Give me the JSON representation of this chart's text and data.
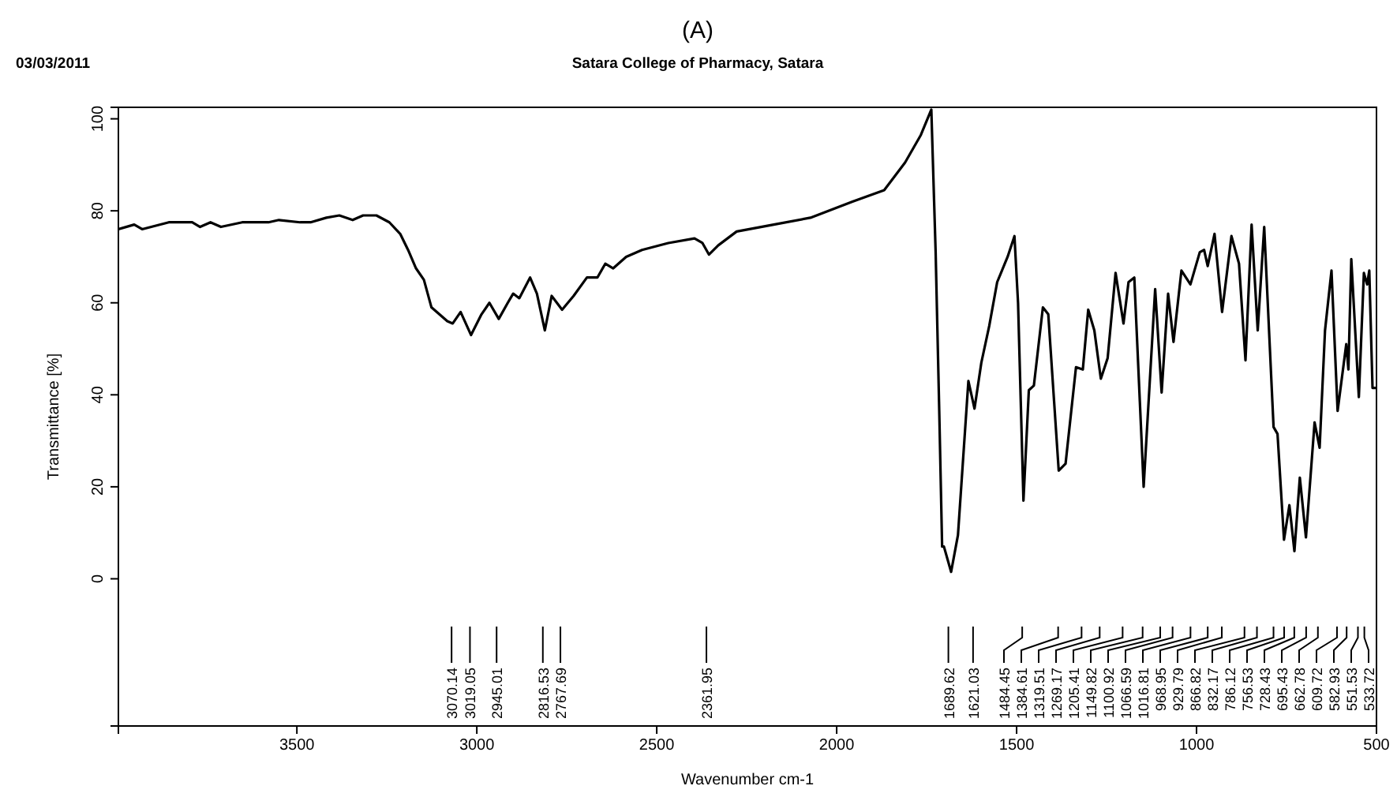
{
  "chart_data": {
    "type": "line",
    "title": "(A)",
    "subtitle": "Satara College of Pharmacy, Satara",
    "xlabel": "Wavenumber cm-1",
    "ylabel": "Transmittance [%]",
    "xlim": [
      3996,
      500
    ],
    "ylim": [
      -32,
      102.5
    ],
    "xticks": [
      3500,
      3000,
      2500,
      2000,
      1500,
      1000,
      500
    ],
    "yticks": [
      0,
      20,
      40,
      60,
      80,
      100
    ],
    "series": [
      {
        "color": "#000000",
        "x": [
          3996,
          3952,
          3930,
          3856,
          3791,
          3769,
          3740,
          3711,
          3652,
          3579,
          3550,
          3491,
          3462,
          3418,
          3382,
          3345,
          3316,
          3279,
          3243,
          3213,
          3191,
          3169,
          3147,
          3126,
          3104,
          3082,
          3067,
          3045,
          3016,
          2987,
          2965,
          2939,
          2914,
          2899,
          2882,
          2852,
          2833,
          2811,
          2792,
          2763,
          2731,
          2694,
          2665,
          2643,
          2621,
          2585,
          2541,
          2468,
          2395,
          2373,
          2355,
          2329,
          2278,
          2175,
          2073,
          1956,
          1868,
          1810,
          1766,
          1737,
          1725,
          1715,
          1707,
          1702,
          1682,
          1663,
          1634,
          1617,
          1598,
          1576,
          1554,
          1525,
          1506,
          1496,
          1481,
          1466,
          1452,
          1427,
          1412,
          1383,
          1364,
          1335,
          1316,
          1301,
          1284,
          1266,
          1247,
          1225,
          1203,
          1189,
          1173,
          1147,
          1115,
          1097,
          1079,
          1064,
          1042,
          1017,
          991,
          979,
          969,
          950,
          929,
          903,
          882,
          864,
          847,
          830,
          812,
          786,
          775,
          757,
          742,
          728,
          713,
          696,
          672,
          658,
          643,
          625,
          608,
          584,
          578,
          570,
          549,
          535,
          526,
          520,
          511,
          500
        ],
        "values": [
          76,
          77,
          76,
          77.5,
          77.5,
          76.5,
          77.5,
          76.5,
          77.5,
          77.5,
          78,
          77.5,
          77.5,
          78.5,
          79,
          78,
          79,
          79,
          77.5,
          75,
          71.5,
          67.5,
          65,
          59,
          57.5,
          56,
          55.5,
          58,
          53,
          57.5,
          60,
          56.5,
          60,
          62,
          61,
          65.5,
          62,
          54,
          61.5,
          58.5,
          61.5,
          65.5,
          65.5,
          68.5,
          67.5,
          70,
          71.5,
          73,
          74,
          73,
          70.5,
          72.5,
          75.5,
          77,
          78.5,
          82,
          84.5,
          90.5,
          96.5,
          102,
          71,
          36.5,
          7,
          7,
          1.5,
          9.5,
          43,
          37,
          47,
          55,
          64.5,
          70,
          74.5,
          60,
          17,
          41,
          42,
          59,
          57.5,
          23.5,
          25,
          46,
          45.5,
          58.5,
          54,
          43.5,
          48,
          66.5,
          55.5,
          64.5,
          65.5,
          20,
          63,
          40.5,
          62,
          51.5,
          67,
          64,
          71,
          71.5,
          68,
          75,
          58,
          74.5,
          68.5,
          47.5,
          77,
          54,
          76.5,
          33,
          31.5,
          8.5,
          16,
          6,
          22,
          9,
          34,
          28.5,
          54,
          67,
          36.5,
          51,
          45.5,
          69.5,
          39.5,
          66.5,
          64,
          67,
          41.5,
          41.5
        ]
      }
    ],
    "annotations": [
      "03/03/2011",
      {
        "text": "3070.14",
        "x": 3070.14
      },
      {
        "text": "3019.05",
        "x": 3019.05
      },
      {
        "text": "2945.01",
        "x": 2945.01
      },
      {
        "text": "2816.53",
        "x": 2816.53
      },
      {
        "text": "2767.69",
        "x": 2767.69
      },
      {
        "text": "2361.95",
        "x": 2361.95
      },
      {
        "text": "1689.62",
        "x": 1689.62
      },
      {
        "text": "1621.03",
        "x": 1621.03
      },
      {
        "text": "1484.45",
        "x": 1484.45
      },
      {
        "text": "1384.61",
        "x": 1384.61
      },
      {
        "text": "1319.51",
        "x": 1319.51
      },
      {
        "text": "1269.17",
        "x": 1269.17
      },
      {
        "text": "1205.41",
        "x": 1205.41
      },
      {
        "text": "1149.82",
        "x": 1149.82
      },
      {
        "text": "1100.92",
        "x": 1100.92
      },
      {
        "text": "1066.59",
        "x": 1066.59
      },
      {
        "text": "1016.81",
        "x": 1016.81
      },
      {
        "text": "968.95",
        "x": 968.95
      },
      {
        "text": "929.79",
        "x": 929.79
      },
      {
        "text": "866.82",
        "x": 866.82
      },
      {
        "text": "832.17",
        "x": 832.17
      },
      {
        "text": "786.12",
        "x": 786.12
      },
      {
        "text": "756.53",
        "x": 756.53
      },
      {
        "text": "728.43",
        "x": 728.43
      },
      {
        "text": "695.43",
        "x": 695.43
      },
      {
        "text": "662.78",
        "x": 662.78
      },
      {
        "text": "609.72",
        "x": 609.72
      },
      {
        "text": "582.93",
        "x": 582.93
      },
      {
        "text": "551.53",
        "x": 551.53
      },
      {
        "text": "533.72",
        "x": 533.72
      }
    ]
  }
}
